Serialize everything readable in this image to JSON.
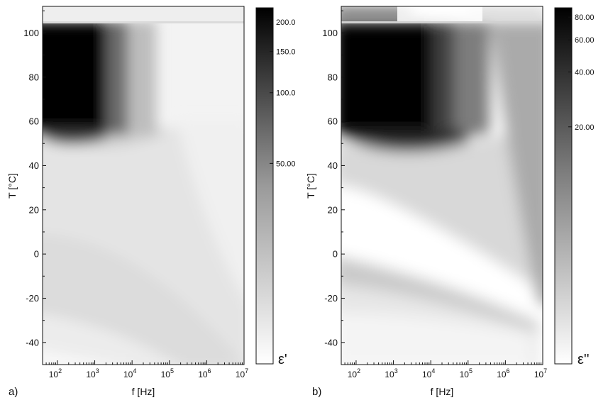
{
  "chart_data": [
    {
      "type": "heatmap",
      "panel_label": "a)",
      "xlabel": "f [Hz]",
      "ylabel": "T [°C]",
      "colorbar_label": "ε'",
      "x_scale": "log",
      "xlim": [
        40,
        10000000
      ],
      "ylim": [
        -50,
        112
      ],
      "x_ticks": [
        100,
        1000,
        10000,
        100000,
        1000000,
        10000000
      ],
      "x_tick_labels": [
        {
          "base": "10",
          "exp": "2"
        },
        {
          "base": "10",
          "exp": "3"
        },
        {
          "base": "10",
          "exp": "4"
        },
        {
          "base": "10",
          "exp": "5"
        },
        {
          "base": "10",
          "exp": "6"
        },
        {
          "base": "10",
          "exp": "7"
        }
      ],
      "y_ticks": [
        -40,
        -20,
        0,
        20,
        40,
        60,
        80,
        100
      ],
      "y_tick_labels": [
        "-40",
        "-20",
        "0",
        "20",
        "40",
        "60",
        "80",
        "100"
      ],
      "colorbar_scale": "log",
      "colorbar_range": [
        7,
        230
      ],
      "colorbar_ticks": [
        50,
        100,
        150,
        200
      ],
      "colorbar_tick_labels": [
        "50.00",
        "100.0",
        "150.0",
        "200.0"
      ],
      "colormap": [
        "#ffffff",
        "#000000"
      ],
      "grid": false
    },
    {
      "type": "heatmap",
      "panel_label": "b)",
      "xlabel": "f [Hz]",
      "ylabel": "T [°C]",
      "colorbar_label": "ε''",
      "x_scale": "log",
      "xlim": [
        40,
        10000000
      ],
      "ylim": [
        -50,
        112
      ],
      "x_ticks": [
        100,
        1000,
        10000,
        100000,
        1000000,
        10000000
      ],
      "x_tick_labels": [
        {
          "base": "10",
          "exp": "2"
        },
        {
          "base": "10",
          "exp": "3"
        },
        {
          "base": "10",
          "exp": "4"
        },
        {
          "base": "10",
          "exp": "5"
        },
        {
          "base": "10",
          "exp": "6"
        },
        {
          "base": "10",
          "exp": "7"
        }
      ],
      "y_ticks": [
        -40,
        -20,
        0,
        20,
        40,
        60,
        80,
        100
      ],
      "y_tick_labels": [
        "-40",
        "-20",
        "0",
        "20",
        "40",
        "60",
        "80",
        "100"
      ],
      "colorbar_scale": "log",
      "colorbar_range": [
        1,
        90
      ],
      "colorbar_ticks": [
        20,
        40,
        60,
        80
      ],
      "colorbar_tick_labels": [
        "20.00",
        "40.00",
        "60.00",
        "80.00"
      ],
      "colormap": [
        "#ffffff",
        "#000000"
      ],
      "grid": false
    }
  ]
}
